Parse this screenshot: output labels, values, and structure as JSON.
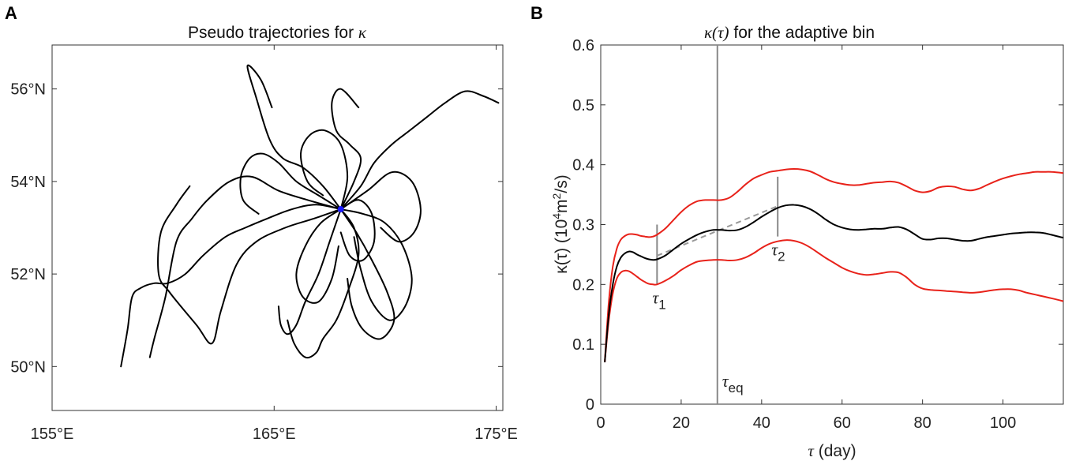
{
  "chart_data": [
    {
      "panel_label": "A",
      "type": "line",
      "title_text": "Pseudo trajectories for ",
      "title_symbol": "κ",
      "x_ticks": [
        "155°E",
        "165°E",
        "175°E"
      ],
      "x_tick_values": [
        155,
        165,
        175
      ],
      "y_ticks": [
        "50°N",
        "52°N",
        "54°N",
        "56°N"
      ],
      "y_tick_values": [
        50,
        52,
        54,
        56
      ],
      "xlim": [
        155,
        175.3
      ],
      "ylim": [
        49.05,
        56.95
      ],
      "center_point": {
        "lon": 168.0,
        "lat": 53.4,
        "color": "#1a1aff"
      },
      "line_color": "#000000",
      "trajectories": [
        [
          [
            168,
            53.4
          ],
          [
            167.2,
            53.9
          ],
          [
            166.3,
            54.3
          ],
          [
            165.4,
            54.5
          ],
          [
            164.8,
            54.9
          ],
          [
            164.2,
            55.8
          ],
          [
            163.8,
            56.5
          ],
          [
            164.4,
            56.2
          ],
          [
            164.9,
            55.6
          ]
        ],
        [
          [
            168,
            53.4
          ],
          [
            166.5,
            53.6
          ],
          [
            165.2,
            53.8
          ],
          [
            164.0,
            54.1
          ],
          [
            163.0,
            54.0
          ],
          [
            162.0,
            53.6
          ],
          [
            161.3,
            53.2
          ],
          [
            160.6,
            52.7
          ],
          [
            160.1,
            51.5
          ],
          [
            159.6,
            50.6
          ],
          [
            159.4,
            50.2
          ]
        ],
        [
          [
            168,
            53.4
          ],
          [
            166.8,
            53.2
          ],
          [
            165.5,
            53.0
          ],
          [
            164.2,
            52.7
          ],
          [
            163.3,
            52.2
          ],
          [
            162.6,
            51.2
          ],
          [
            162.2,
            50.5
          ],
          [
            161.5,
            50.9
          ],
          [
            160.3,
            51.6
          ],
          [
            159.8,
            52.0
          ],
          [
            159.9,
            52.9
          ],
          [
            160.6,
            53.5
          ],
          [
            161.2,
            53.9
          ]
        ],
        [
          [
            168,
            53.4
          ],
          [
            168.9,
            53.9
          ],
          [
            169.5,
            54.4
          ],
          [
            170.3,
            54.8
          ],
          [
            171.1,
            55.1
          ],
          [
            171.9,
            55.4
          ],
          [
            172.7,
            55.7
          ],
          [
            173.6,
            55.95
          ],
          [
            174.4,
            55.85
          ],
          [
            175.1,
            55.7
          ]
        ],
        [
          [
            168,
            53.4
          ],
          [
            168.6,
            53.0
          ],
          [
            168.8,
            52.4
          ],
          [
            168.3,
            51.6
          ],
          [
            167.8,
            51.0
          ],
          [
            167.2,
            50.6
          ],
          [
            166.9,
            50.3
          ],
          [
            166.4,
            50.2
          ],
          [
            165.9,
            50.5
          ],
          [
            165.6,
            51.0
          ]
        ],
        [
          [
            168,
            53.4
          ],
          [
            169.0,
            53.3
          ],
          [
            170.0,
            53.1
          ],
          [
            170.8,
            52.6
          ],
          [
            171.2,
            51.9
          ],
          [
            170.9,
            51.3
          ],
          [
            170.2,
            51.0
          ],
          [
            169.4,
            51.4
          ],
          [
            168.9,
            52.1
          ],
          [
            168.6,
            52.8
          ]
        ],
        [
          [
            168,
            53.4
          ],
          [
            167.1,
            53.1
          ],
          [
            166.4,
            52.6
          ],
          [
            166.0,
            52.0
          ],
          [
            166.3,
            51.5
          ],
          [
            167.0,
            51.4
          ],
          [
            167.6,
            51.9
          ],
          [
            167.9,
            52.6
          ]
        ],
        [
          [
            168,
            53.4
          ],
          [
            168.6,
            54.0
          ],
          [
            168.9,
            54.5
          ],
          [
            168.4,
            54.8
          ],
          [
            167.8,
            55.1
          ],
          [
            167.6,
            55.7
          ],
          [
            168.0,
            56.0
          ],
          [
            168.8,
            55.6
          ]
        ],
        [
          [
            168,
            53.4
          ],
          [
            169.2,
            53.8
          ],
          [
            170.3,
            54.2
          ],
          [
            171.2,
            54.0
          ],
          [
            171.6,
            53.4
          ],
          [
            171.3,
            52.9
          ],
          [
            170.6,
            52.7
          ],
          [
            169.8,
            53.0
          ]
        ],
        [
          [
            168,
            53.4
          ],
          [
            167.0,
            53.7
          ],
          [
            166.0,
            54.0
          ],
          [
            165.2,
            54.4
          ],
          [
            164.5,
            54.6
          ],
          [
            163.9,
            54.5
          ],
          [
            163.5,
            54.1
          ],
          [
            163.6,
            53.6
          ],
          [
            164.3,
            53.3
          ]
        ],
        [
          [
            168,
            53.4
          ],
          [
            167.5,
            52.7
          ],
          [
            167.0,
            52.0
          ],
          [
            166.4,
            51.4
          ],
          [
            166.0,
            50.9
          ],
          [
            165.6,
            50.7
          ],
          [
            165.3,
            50.9
          ],
          [
            165.2,
            51.3
          ]
        ],
        [
          [
            168,
            53.4
          ],
          [
            168.8,
            53.6
          ],
          [
            169.4,
            53.3
          ],
          [
            169.5,
            52.7
          ],
          [
            169.0,
            52.3
          ],
          [
            168.4,
            52.4
          ],
          [
            168.0,
            52.9
          ]
        ],
        [
          [
            168,
            53.4
          ],
          [
            166.9,
            53.5
          ],
          [
            165.8,
            53.4
          ],
          [
            164.7,
            53.2
          ],
          [
            163.7,
            53.0
          ],
          [
            162.8,
            52.8
          ],
          [
            161.8,
            52.4
          ],
          [
            161.0,
            52.0
          ],
          [
            160.2,
            51.8
          ],
          [
            159.6,
            51.8
          ],
          [
            159.0,
            51.7
          ],
          [
            158.6,
            51.5
          ],
          [
            158.4,
            50.8
          ],
          [
            158.1,
            50.0
          ]
        ],
        [
          [
            168,
            53.4
          ],
          [
            168.3,
            54.1
          ],
          [
            168.0,
            54.8
          ],
          [
            167.3,
            55.1
          ],
          [
            166.6,
            55.0
          ],
          [
            166.2,
            54.6
          ],
          [
            166.5,
            54.0
          ],
          [
            167.2,
            53.7
          ]
        ],
        [
          [
            168,
            53.4
          ],
          [
            168.7,
            52.9
          ],
          [
            169.4,
            52.3
          ],
          [
            170.1,
            51.6
          ],
          [
            170.4,
            51.0
          ],
          [
            169.8,
            50.6
          ],
          [
            169.0,
            50.8
          ],
          [
            168.5,
            51.3
          ],
          [
            168.3,
            51.9
          ]
        ]
      ]
    },
    {
      "panel_label": "B",
      "type": "line",
      "title_prefix": "κ(τ)",
      "title_text": " for the adaptive bin",
      "xlabel_symbol": "τ",
      "xlabel_text": " (day)",
      "ylabel_prefix": "κ(τ) (10",
      "ylabel_sup1": "4",
      "ylabel_mid": "m",
      "ylabel_sup2": "2",
      "ylabel_suffix": "/s)",
      "xlim": [
        0,
        115
      ],
      "ylim": [
        0,
        0.6
      ],
      "x_ticks": [
        0,
        20,
        40,
        60,
        80,
        100
      ],
      "y_ticks": [
        0,
        0.1,
        0.2,
        0.3,
        0.4,
        0.5,
        0.6
      ],
      "y_tick_labels": [
        "0",
        "0.1",
        "0.2",
        "0.3",
        "0.4",
        "0.5",
        "0.6"
      ],
      "x_tick_labels": [
        "0",
        "20",
        "40",
        "60",
        "80",
        "100"
      ],
      "series": [
        {
          "color": "#000000",
          "x": [
            1,
            2,
            3,
            4,
            5,
            6,
            7,
            8,
            9,
            10,
            11,
            12,
            13,
            14,
            16,
            18,
            20,
            22,
            24,
            26,
            28,
            30,
            32,
            34,
            36,
            38,
            40,
            42,
            44,
            46,
            48,
            50,
            52,
            54,
            56,
            58,
            60,
            62,
            64,
            66,
            68,
            70,
            72,
            74,
            76,
            78,
            80,
            82,
            84,
            86,
            88,
            90,
            92,
            94,
            96,
            98,
            100,
            102,
            104,
            106,
            108,
            110,
            112,
            115
          ],
          "y": [
            0.07,
            0.15,
            0.2,
            0.23,
            0.245,
            0.252,
            0.255,
            0.254,
            0.25,
            0.247,
            0.244,
            0.242,
            0.241,
            0.242,
            0.248,
            0.258,
            0.268,
            0.276,
            0.283,
            0.288,
            0.291,
            0.291,
            0.29,
            0.291,
            0.296,
            0.304,
            0.313,
            0.321,
            0.328,
            0.332,
            0.333,
            0.331,
            0.326,
            0.318,
            0.308,
            0.3,
            0.295,
            0.292,
            0.291,
            0.292,
            0.293,
            0.293,
            0.295,
            0.296,
            0.292,
            0.284,
            0.276,
            0.275,
            0.277,
            0.277,
            0.275,
            0.273,
            0.273,
            0.276,
            0.279,
            0.281,
            0.283,
            0.285,
            0.286,
            0.287,
            0.287,
            0.286,
            0.283,
            0.278
          ]
        },
        {
          "color": "#e8221a",
          "x": [
            1,
            2,
            3,
            4,
            5,
            6,
            7,
            8,
            9,
            10,
            11,
            12,
            13,
            14,
            16,
            18,
            20,
            22,
            24,
            26,
            28,
            30,
            32,
            34,
            36,
            38,
            40,
            42,
            44,
            46,
            48,
            50,
            52,
            54,
            56,
            58,
            60,
            62,
            64,
            66,
            68,
            70,
            72,
            74,
            76,
            78,
            80,
            82,
            84,
            86,
            88,
            90,
            92,
            94,
            96,
            98,
            100,
            102,
            104,
            106,
            108,
            110,
            112,
            115
          ],
          "y": [
            0.07,
            0.17,
            0.23,
            0.26,
            0.275,
            0.281,
            0.284,
            0.284,
            0.283,
            0.281,
            0.28,
            0.279,
            0.28,
            0.283,
            0.293,
            0.307,
            0.321,
            0.332,
            0.339,
            0.341,
            0.341,
            0.341,
            0.345,
            0.355,
            0.367,
            0.377,
            0.383,
            0.388,
            0.39,
            0.392,
            0.393,
            0.392,
            0.389,
            0.383,
            0.376,
            0.371,
            0.368,
            0.366,
            0.366,
            0.368,
            0.37,
            0.371,
            0.372,
            0.37,
            0.364,
            0.357,
            0.354,
            0.356,
            0.362,
            0.364,
            0.363,
            0.359,
            0.357,
            0.36,
            0.366,
            0.372,
            0.377,
            0.381,
            0.384,
            0.386,
            0.388,
            0.388,
            0.388,
            0.386
          ]
        },
        {
          "color": "#e8221a",
          "x": [
            1,
            2,
            3,
            4,
            5,
            6,
            7,
            8,
            9,
            10,
            11,
            12,
            13,
            14,
            16,
            18,
            20,
            22,
            24,
            26,
            28,
            30,
            32,
            34,
            36,
            38,
            40,
            42,
            44,
            46,
            48,
            50,
            52,
            54,
            56,
            58,
            60,
            62,
            64,
            66,
            68,
            70,
            72,
            74,
            76,
            78,
            80,
            82,
            84,
            86,
            88,
            90,
            92,
            94,
            96,
            98,
            100,
            102,
            104,
            106,
            108,
            110,
            112,
            115
          ],
          "y": [
            0.07,
            0.14,
            0.185,
            0.21,
            0.22,
            0.223,
            0.222,
            0.218,
            0.213,
            0.208,
            0.204,
            0.201,
            0.2,
            0.2,
            0.206,
            0.214,
            0.224,
            0.232,
            0.238,
            0.24,
            0.241,
            0.241,
            0.24,
            0.241,
            0.245,
            0.252,
            0.261,
            0.268,
            0.272,
            0.274,
            0.273,
            0.269,
            0.262,
            0.253,
            0.244,
            0.236,
            0.228,
            0.222,
            0.218,
            0.216,
            0.217,
            0.219,
            0.221,
            0.22,
            0.212,
            0.2,
            0.193,
            0.191,
            0.19,
            0.189,
            0.188,
            0.187,
            0.186,
            0.187,
            0.189,
            0.191,
            0.192,
            0.192,
            0.19,
            0.186,
            0.183,
            0.18,
            0.177,
            0.172
          ]
        }
      ],
      "fit_line": {
        "color": "#999999",
        "x": [
          14,
          44
        ],
        "y": [
          0.248,
          0.331
        ]
      },
      "markers": [
        {
          "label": "τ",
          "sub": "1",
          "x": 14,
          "y0": 0.2,
          "y1": 0.3,
          "color": "#888888"
        },
        {
          "label": "τ",
          "sub": "2",
          "x": 44,
          "y0": 0.28,
          "y1": 0.38,
          "color": "#888888"
        },
        {
          "label": "τ",
          "sub": "eq",
          "x": 29,
          "y0": 0,
          "y1": 0.6,
          "color": "#888888"
        }
      ]
    }
  ]
}
